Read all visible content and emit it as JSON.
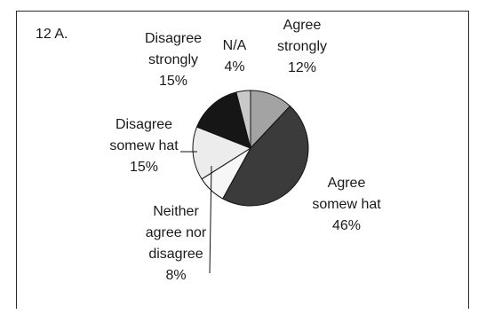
{
  "chart_data": {
    "type": "pie",
    "title": "12 A.",
    "slices": [
      {
        "label_lines": [
          "Agree",
          "strongly"
        ],
        "value": 12,
        "value_label": "12%",
        "color": "#a3a3a3"
      },
      {
        "label_lines": [
          "Agree",
          "somew hat"
        ],
        "value": 46,
        "value_label": "46%",
        "color": "#3b3b3b"
      },
      {
        "label_lines": [
          "Neither",
          "agree nor",
          "disagree"
        ],
        "value": 8,
        "value_label": "8%",
        "color": "#f7f7f7"
      },
      {
        "label_lines": [
          "Disagree",
          "somew hat"
        ],
        "value": 15,
        "value_label": "15%",
        "color": "#ececec"
      },
      {
        "label_lines": [
          "Disagree",
          "strongly"
        ],
        "value": 15,
        "value_label": "15%",
        "color": "#161616"
      },
      {
        "label_lines": [
          "N/A"
        ],
        "value": 4,
        "value_label": "4%",
        "color": "#c9c9c9"
      }
    ],
    "legend": "none"
  }
}
